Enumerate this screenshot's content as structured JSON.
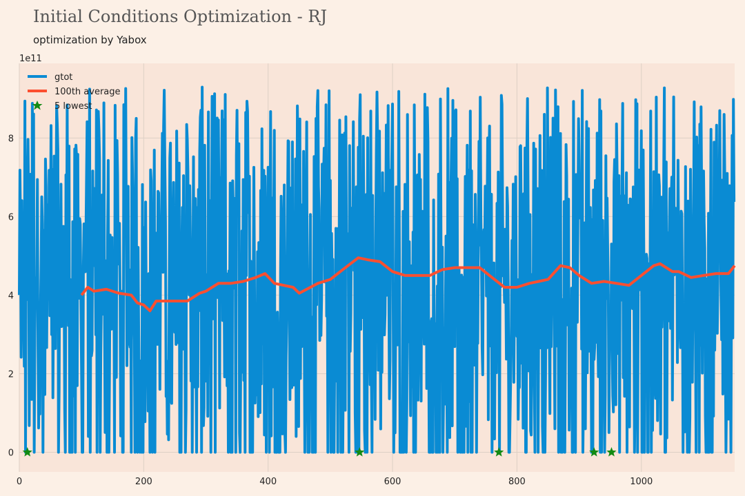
{
  "chart_data": {
    "type": "line",
    "title": "Initial Conditions Optimization - RJ",
    "subtitle": "optimization by Yabox",
    "y_offset_label": "1e11",
    "xlim": [
      0,
      1150
    ],
    "ylim": [
      -0.5,
      9.9
    ],
    "x_ticks": [
      0,
      200,
      400,
      600,
      800,
      1000
    ],
    "y_ticks": [
      0,
      2,
      4,
      6,
      8
    ],
    "grid": true,
    "legend_position": "top-left",
    "legend": [
      "gtot",
      "100th average",
      "5 lowest"
    ],
    "series": [
      {
        "name": "gtot",
        "type": "line",
        "color": "#0a8bd3",
        "n_points": 1150,
        "y_range": [
          0,
          9.4
        ]
      },
      {
        "name": "100th average",
        "type": "line",
        "color": "#fc4f30",
        "x": [
          100,
          110,
          120,
          140,
          160,
          180,
          190,
          200,
          210,
          220,
          240,
          260,
          270,
          290,
          300,
          320,
          340,
          360,
          380,
          395,
          410,
          440,
          450,
          480,
          500,
          520,
          545,
          560,
          580,
          600,
          620,
          650,
          660,
          680,
          700,
          720,
          740,
          760,
          780,
          800,
          820,
          835,
          850,
          870,
          885,
          900,
          920,
          940,
          960,
          980,
          1000,
          1020,
          1030,
          1050,
          1060,
          1080,
          1100,
          1120,
          1140,
          1150
        ],
        "y": [
          4.0,
          4.2,
          4.1,
          4.15,
          4.05,
          4.0,
          3.8,
          3.75,
          3.6,
          3.85,
          3.85,
          3.85,
          3.85,
          4.05,
          4.1,
          4.3,
          4.3,
          4.35,
          4.45,
          4.55,
          4.3,
          4.2,
          4.05,
          4.3,
          4.4,
          4.65,
          4.95,
          4.9,
          4.85,
          4.6,
          4.5,
          4.5,
          4.5,
          4.65,
          4.7,
          4.7,
          4.7,
          4.45,
          4.2,
          4.2,
          4.3,
          4.35,
          4.4,
          4.75,
          4.7,
          4.5,
          4.3,
          4.35,
          4.3,
          4.25,
          4.5,
          4.75,
          4.8,
          4.6,
          4.6,
          4.45,
          4.5,
          4.55,
          4.55,
          4.75
        ]
      },
      {
        "name": "5 lowest",
        "type": "scatter",
        "color": "#138a13",
        "x": [
          13,
          547,
          771,
          924,
          952
        ],
        "y": [
          0,
          0,
          0,
          0,
          0
        ]
      }
    ]
  }
}
